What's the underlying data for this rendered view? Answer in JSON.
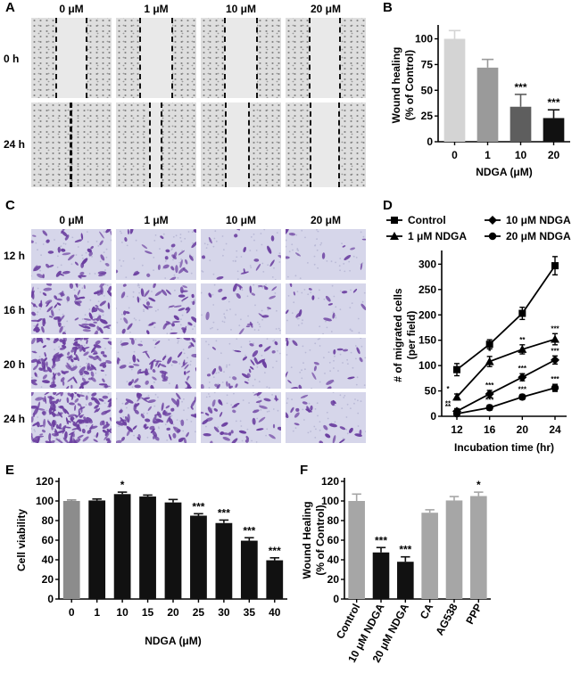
{
  "panel_letters": {
    "a": "A",
    "b": "B",
    "c": "C",
    "d": "D",
    "e": "E",
    "f": "F"
  },
  "panel_a": {
    "col_headers": [
      "0 μM",
      "1 μM",
      "10 μM",
      "20 μM"
    ],
    "row_labels": [
      "0 h",
      "24 h"
    ]
  },
  "panel_c": {
    "col_headers": [
      "0 μM",
      "1 μM",
      "10 μM",
      "20 μM"
    ],
    "row_labels": [
      "12 h",
      "16 h",
      "20 h",
      "24 h"
    ]
  },
  "colors": {
    "light_gray": "#d4d4d4",
    "mid_gray": "#9a9a9a",
    "dark_gray": "#5e5e5e",
    "black": "#111111",
    "bar_gray": "#a6a6a6",
    "stain": "#6b3fa0"
  },
  "chart_data": [
    {
      "id": "B",
      "type": "bar",
      "categories": [
        "0",
        "1",
        "10",
        "20"
      ],
      "values": [
        100,
        72,
        34,
        23
      ],
      "errors": [
        8,
        8,
        12,
        8
      ],
      "significance": [
        "",
        "",
        "***",
        "***"
      ],
      "xlabel": "NDGA (μM)",
      "ylabel": [
        "Wound healing",
        "(% of Control)"
      ],
      "ylim": [
        0,
        110
      ],
      "yticks": [
        0,
        25,
        50,
        75,
        100
      ],
      "colors": [
        "#d4d4d4",
        "#9a9a9a",
        "#5e5e5e",
        "#111111"
      ]
    },
    {
      "id": "D",
      "type": "line",
      "x": [
        12,
        16,
        20,
        24
      ],
      "series": [
        {
          "name": "Control",
          "marker": "square",
          "values": [
            92,
            142,
            203,
            297
          ],
          "errors": [
            12,
            9,
            12,
            18
          ],
          "significance": [
            "",
            "",
            "",
            ""
          ]
        },
        {
          "name": "1 μM NDGA",
          "marker": "triangle",
          "values": [
            38,
            108,
            132,
            152
          ],
          "errors": [
            6,
            10,
            9,
            11
          ],
          "significance": [
            "*",
            "*",
            "**",
            "***"
          ]
        },
        {
          "name": "10 μM NDGA",
          "marker": "diamond",
          "values": [
            10,
            44,
            77,
            111
          ],
          "errors": [
            5,
            7,
            7,
            8
          ],
          "significance": [
            "**",
            "***",
            "***",
            "***"
          ]
        },
        {
          "name": "20 μM NDGA",
          "marker": "circle",
          "values": [
            5,
            17,
            38,
            56
          ],
          "errors": [
            4,
            5,
            5,
            7
          ],
          "significance": [
            "**",
            "***",
            "***",
            "***"
          ]
        }
      ],
      "xlabel": "Incubation time (hr)",
      "ylabel": [
        "# of migrated cells",
        "(per field)"
      ],
      "xticks": [
        12,
        16,
        20,
        24
      ],
      "ylim": [
        0,
        320
      ],
      "yticks": [
        0,
        50,
        100,
        150,
        200,
        250,
        300
      ],
      "legend": "top"
    },
    {
      "id": "E",
      "type": "bar",
      "categories": [
        "0",
        "1",
        "10",
        "15",
        "20",
        "25",
        "30",
        "35",
        "40"
      ],
      "values": [
        100,
        100.5,
        107,
        104.5,
        98.5,
        85,
        77.5,
        59.5,
        39.5
      ],
      "errors": [
        1,
        1.5,
        2,
        1.5,
        3,
        2,
        3,
        3,
        2.5
      ],
      "significance": [
        "",
        "",
        "*",
        "",
        "",
        "***",
        "***",
        "***",
        "***"
      ],
      "xlabel": "NDGA (μM)",
      "ylabel": "Cell viability",
      "ylim": [
        0,
        120
      ],
      "yticks": [
        0,
        20,
        40,
        60,
        80,
        100,
        120
      ],
      "colors": [
        "#8c8c8c",
        "#111111",
        "#111111",
        "#111111",
        "#111111",
        "#111111",
        "#111111",
        "#111111",
        "#111111"
      ]
    },
    {
      "id": "F",
      "type": "bar",
      "categories": [
        "Control",
        "10 μM NDGA",
        "20 μM NDGA",
        "CA",
        "AG538",
        "PPP"
      ],
      "values": [
        100,
        47.5,
        38,
        88,
        100.5,
        105
      ],
      "errors": [
        7,
        5,
        5,
        3,
        4,
        4
      ],
      "significance": [
        "",
        "***",
        "***",
        "",
        "",
        "*"
      ],
      "xlabel": "",
      "ylabel": [
        "Wound Healing",
        "(% of Control)"
      ],
      "ylim": [
        0,
        120
      ],
      "yticks": [
        0,
        20,
        40,
        60,
        80,
        100,
        120
      ],
      "colors": [
        "#a6a6a6",
        "#111111",
        "#111111",
        "#a6a6a6",
        "#a6a6a6",
        "#a6a6a6"
      ]
    }
  ]
}
